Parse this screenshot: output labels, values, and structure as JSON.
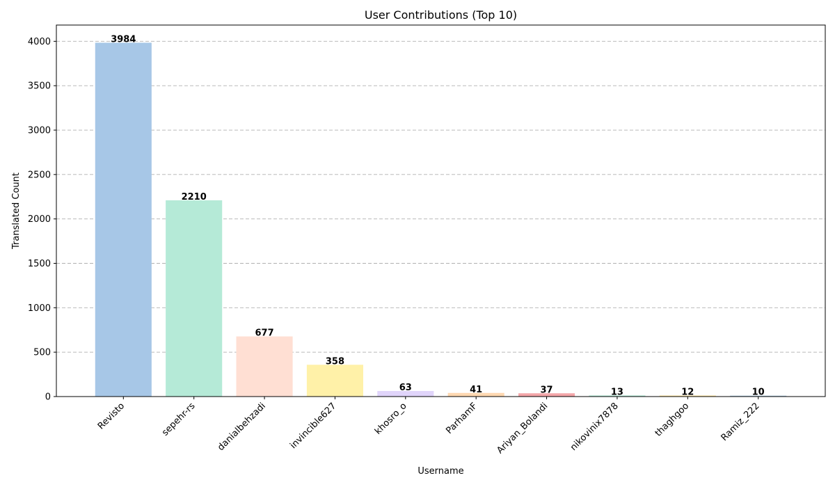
{
  "chart_data": {
    "type": "bar",
    "title": "User Contributions (Top 10)",
    "xlabel": "Username",
    "ylabel": "Translated Count",
    "categories": [
      "Revisto",
      "sepehr-rs",
      "danialbehzadi",
      "invincible627",
      "khosro_o",
      "ParhamF",
      "Ariyan_Bolandi",
      "nikovinix7878",
      "thaghgoo",
      "Ramiz_222"
    ],
    "values": [
      3984,
      2210,
      677,
      358,
      63,
      41,
      37,
      13,
      12,
      10
    ],
    "colors": [
      "#a7c7e7",
      "#b5ead7",
      "#ffdfd3",
      "#fff1a8",
      "#e0d4fa",
      "#ffd8b1",
      "#f4a6a9",
      "#b5ead7",
      "#ffe7a3",
      "#aecbe0"
    ],
    "yticks": [
      0,
      500,
      1000,
      1500,
      2000,
      2500,
      3000,
      3500,
      4000
    ],
    "ylim": [
      0,
      4183
    ],
    "grid": true,
    "legend": "none"
  }
}
